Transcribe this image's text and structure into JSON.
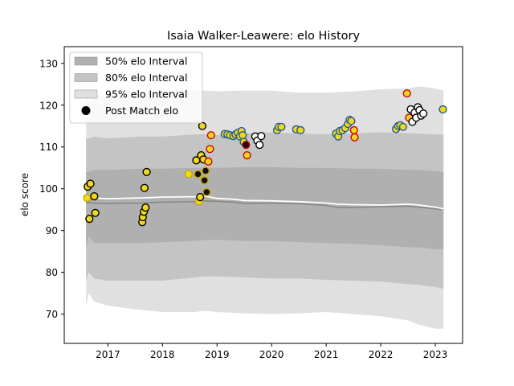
{
  "chart_data": {
    "type": "line",
    "title": "Isaia Walker-Leawere: elo History",
    "xlabel": "",
    "ylabel": "elo score",
    "xlim": [
      2016.2,
      2023.5
    ],
    "ylim": [
      63,
      134
    ],
    "x_ticks": [
      2017,
      2018,
      2019,
      2020,
      2021,
      2022,
      2023
    ],
    "y_ticks": [
      70,
      80,
      90,
      100,
      110,
      120,
      130
    ],
    "grid": false,
    "legend_position": "upper-left",
    "legend": [
      {
        "label": "50% elo Interval",
        "kind": "band",
        "color": "#b0b0b0"
      },
      {
        "label": "80% elo Interval",
        "kind": "band",
        "color": "#c4c4c4"
      },
      {
        "label": "95% elo Interval",
        "kind": "band",
        "color": "#e0e0e0"
      },
      {
        "label": "Post Match elo",
        "kind": "marker",
        "color": "#000000"
      }
    ],
    "colors": {
      "band_50": "#b0b0b0",
      "band_80": "#c4c4c4",
      "band_95": "#e0e0e0",
      "mean_line": "#ffffff",
      "median_line": "#888888",
      "marker_yellow": "#f0d820",
      "marker_black": "#111111",
      "marker_white": "#ffffff",
      "edge_black": "#000000",
      "edge_gold": "#c8a800",
      "edge_blue": "#1f5a99",
      "edge_red": "#cc0000"
    },
    "series": [
      {
        "name": "95% elo Interval",
        "kind": "band",
        "x": [
          2016.6,
          2016.65,
          2016.75,
          2017.0,
          2017.6,
          2018.0,
          2018.6,
          2018.75,
          2019.0,
          2019.5,
          2020.0,
          2020.5,
          2021.0,
          2021.5,
          2022.0,
          2022.5,
          2022.7,
          2023.0,
          2023.15
        ],
        "upper": [
          123,
          120,
          122.5,
          122,
          123,
          123,
          123.5,
          123.5,
          123.3,
          123.5,
          123.5,
          123,
          123,
          123.3,
          123.8,
          124,
          124.5,
          124,
          123.5
        ],
        "lower": [
          72,
          75,
          73,
          72,
          71,
          70.5,
          70.5,
          70.8,
          70.5,
          70.2,
          70,
          70.2,
          70.5,
          70,
          69.5,
          68.5,
          67.5,
          66.5,
          66.5
        ]
      },
      {
        "name": "80% elo Interval",
        "kind": "band",
        "x": [
          2016.6,
          2016.65,
          2016.75,
          2017.0,
          2017.6,
          2018.0,
          2018.6,
          2018.75,
          2019.0,
          2019.5,
          2020.0,
          2020.5,
          2021.0,
          2021.5,
          2022.0,
          2022.5,
          2022.7,
          2023.0,
          2023.15
        ],
        "upper": [
          112,
          112,
          112.5,
          112,
          112.5,
          112.5,
          113,
          113,
          112.8,
          113.3,
          113.5,
          113.2,
          113,
          113.2,
          113.5,
          113.3,
          113.2,
          113,
          113
        ],
        "lower": [
          78,
          80,
          78.5,
          78,
          78,
          78,
          78.8,
          79,
          79,
          78.8,
          78.5,
          78.5,
          78.2,
          78,
          77.8,
          77.2,
          77,
          76.5,
          76
        ]
      },
      {
        "name": "50% elo Interval",
        "kind": "band",
        "x": [
          2016.6,
          2016.65,
          2016.75,
          2017.0,
          2017.6,
          2018.0,
          2018.6,
          2018.75,
          2019.0,
          2019.5,
          2020.0,
          2020.5,
          2021.0,
          2021.5,
          2022.0,
          2022.5,
          2022.7,
          2023.0,
          2023.15
        ],
        "upper": [
          104,
          104,
          104.5,
          104.5,
          104.8,
          104.8,
          105,
          105,
          105,
          105.2,
          105.2,
          105,
          105,
          104.8,
          104.8,
          104.5,
          104.5,
          104.2,
          104
        ],
        "lower": [
          86,
          88.5,
          87,
          87,
          87,
          87.2,
          87.5,
          87.7,
          87.8,
          87.5,
          87.5,
          87.2,
          87,
          86.8,
          86.5,
          86,
          86,
          85.5,
          85.5
        ]
      },
      {
        "name": "",
        "kind": "line",
        "color": "#888888",
        "x": [
          2016.6,
          2016.65,
          2016.75,
          2017.0,
          2017.6,
          2018.0,
          2018.6,
          2018.75,
          2019.0,
          2019.3,
          2019.5,
          2020.0,
          2020.5,
          2021.0,
          2021.2,
          2021.5,
          2022.0,
          2022.5,
          2022.7,
          2023.0,
          2023.15
        ],
        "y": [
          96.5,
          96.8,
          96.5,
          96.5,
          96.6,
          96.8,
          96.9,
          97.1,
          97.0,
          96.8,
          96.5,
          96.6,
          96.4,
          96.0,
          95.5,
          95.5,
          95.7,
          95.8,
          95.6,
          95.2,
          95.0
        ]
      },
      {
        "name": "",
        "kind": "line",
        "color": "#ffffff",
        "x": [
          2016.6,
          2016.65,
          2016.75,
          2017.0,
          2017.6,
          2018.0,
          2018.6,
          2018.75,
          2019.0,
          2019.3,
          2019.5,
          2020.0,
          2020.5,
          2021.0,
          2021.2,
          2021.5,
          2022.0,
          2022.5,
          2022.7,
          2023.0,
          2023.15
        ],
        "y": [
          97.5,
          98.5,
          97.8,
          97.6,
          97.8,
          98.0,
          98.1,
          98.3,
          97.7,
          97.5,
          97.2,
          97.1,
          96.9,
          96.6,
          96.3,
          96.2,
          96.1,
          96.3,
          96.1,
          95.6,
          95.2
        ]
      },
      {
        "name": "Post Match elo",
        "kind": "scatter",
        "points": [
          {
            "x": 2016.62,
            "y": 97.8,
            "fill": "yellow",
            "edge": "gold"
          },
          {
            "x": 2016.63,
            "y": 100.5,
            "fill": "yellow",
            "edge": "black"
          },
          {
            "x": 2016.66,
            "y": 92.8,
            "fill": "yellow",
            "edge": "black"
          },
          {
            "x": 2016.68,
            "y": 101.2,
            "fill": "yellow",
            "edge": "black"
          },
          {
            "x": 2016.75,
            "y": 98.2,
            "fill": "yellow",
            "edge": "black"
          },
          {
            "x": 2016.77,
            "y": 94.2,
            "fill": "yellow",
            "edge": "black"
          },
          {
            "x": 2017.63,
            "y": 92.0,
            "fill": "yellow",
            "edge": "black"
          },
          {
            "x": 2017.64,
            "y": 93.2,
            "fill": "yellow",
            "edge": "black"
          },
          {
            "x": 2017.66,
            "y": 94.5,
            "fill": "yellow",
            "edge": "black"
          },
          {
            "x": 2017.67,
            "y": 100.2,
            "fill": "yellow",
            "edge": "black"
          },
          {
            "x": 2017.69,
            "y": 95.5,
            "fill": "yellow",
            "edge": "black"
          },
          {
            "x": 2017.71,
            "y": 104.0,
            "fill": "yellow",
            "edge": "black"
          },
          {
            "x": 2018.48,
            "y": 103.5,
            "fill": "yellow",
            "edge": "gold"
          },
          {
            "x": 2018.62,
            "y": 106.8,
            "fill": "yellow",
            "edge": "black"
          },
          {
            "x": 2018.65,
            "y": 103.5,
            "fill": "black",
            "edge": "gold"
          },
          {
            "x": 2018.67,
            "y": 97.0,
            "fill": "yellow",
            "edge": "gold"
          },
          {
            "x": 2018.69,
            "y": 98.0,
            "fill": "yellow",
            "edge": "black"
          },
          {
            "x": 2018.71,
            "y": 108.0,
            "fill": "yellow",
            "edge": "black"
          },
          {
            "x": 2018.73,
            "y": 115.0,
            "fill": "yellow",
            "edge": "black"
          },
          {
            "x": 2018.75,
            "y": 107.0,
            "fill": "yellow",
            "edge": "black"
          },
          {
            "x": 2018.77,
            "y": 102.0,
            "fill": "black",
            "edge": "gold"
          },
          {
            "x": 2018.79,
            "y": 104.3,
            "fill": "black",
            "edge": "gold"
          },
          {
            "x": 2018.81,
            "y": 99.2,
            "fill": "black",
            "edge": "gold"
          },
          {
            "x": 2018.84,
            "y": 106.5,
            "fill": "yellow",
            "edge": "red"
          },
          {
            "x": 2018.87,
            "y": 109.5,
            "fill": "yellow",
            "edge": "red"
          },
          {
            "x": 2018.89,
            "y": 112.8,
            "fill": "yellow",
            "edge": "red"
          },
          {
            "x": 2019.14,
            "y": 113.1,
            "fill": "yellow",
            "edge": "blue"
          },
          {
            "x": 2019.19,
            "y": 113.0,
            "fill": "yellow",
            "edge": "blue"
          },
          {
            "x": 2019.24,
            "y": 112.8,
            "fill": "yellow",
            "edge": "blue"
          },
          {
            "x": 2019.3,
            "y": 112.6,
            "fill": "yellow",
            "edge": "blue"
          },
          {
            "x": 2019.34,
            "y": 113.0,
            "fill": "yellow",
            "edge": "blue"
          },
          {
            "x": 2019.38,
            "y": 113.4,
            "fill": "yellow",
            "edge": "blue"
          },
          {
            "x": 2019.42,
            "y": 112.5,
            "fill": "yellow",
            "edge": "blue"
          },
          {
            "x": 2019.45,
            "y": 113.8,
            "fill": "yellow",
            "edge": "blue"
          },
          {
            "x": 2019.47,
            "y": 112.8,
            "fill": "yellow",
            "edge": "blue"
          },
          {
            "x": 2019.49,
            "y": 111.2,
            "fill": "yellow",
            "edge": "blue"
          },
          {
            "x": 2019.53,
            "y": 110.5,
            "fill": "black",
            "edge": "red"
          },
          {
            "x": 2019.55,
            "y": 108.0,
            "fill": "yellow",
            "edge": "red"
          },
          {
            "x": 2019.7,
            "y": 112.5,
            "fill": "white",
            "edge": "black"
          },
          {
            "x": 2019.74,
            "y": 111.5,
            "fill": "white",
            "edge": "black"
          },
          {
            "x": 2019.78,
            "y": 110.5,
            "fill": "white",
            "edge": "black"
          },
          {
            "x": 2019.81,
            "y": 112.6,
            "fill": "white",
            "edge": "black"
          },
          {
            "x": 2020.1,
            "y": 114.0,
            "fill": "yellow",
            "edge": "blue"
          },
          {
            "x": 2020.13,
            "y": 114.8,
            "fill": "yellow",
            "edge": "blue"
          },
          {
            "x": 2020.18,
            "y": 114.8,
            "fill": "yellow",
            "edge": "blue"
          },
          {
            "x": 2020.45,
            "y": 114.2,
            "fill": "yellow",
            "edge": "blue"
          },
          {
            "x": 2020.53,
            "y": 114.0,
            "fill": "yellow",
            "edge": "blue"
          },
          {
            "x": 2021.18,
            "y": 113.2,
            "fill": "yellow",
            "edge": "blue"
          },
          {
            "x": 2021.22,
            "y": 112.5,
            "fill": "yellow",
            "edge": "blue"
          },
          {
            "x": 2021.25,
            "y": 113.8,
            "fill": "yellow",
            "edge": "blue"
          },
          {
            "x": 2021.3,
            "y": 114.0,
            "fill": "yellow",
            "edge": "blue"
          },
          {
            "x": 2021.35,
            "y": 114.5,
            "fill": "yellow",
            "edge": "blue"
          },
          {
            "x": 2021.4,
            "y": 115.5,
            "fill": "yellow",
            "edge": "blue"
          },
          {
            "x": 2021.43,
            "y": 116.5,
            "fill": "yellow",
            "edge": "blue"
          },
          {
            "x": 2021.46,
            "y": 116.2,
            "fill": "yellow",
            "edge": "blue"
          },
          {
            "x": 2021.51,
            "y": 114.0,
            "fill": "yellow",
            "edge": "red"
          },
          {
            "x": 2021.52,
            "y": 112.3,
            "fill": "yellow",
            "edge": "red"
          },
          {
            "x": 2022.28,
            "y": 114.3,
            "fill": "yellow",
            "edge": "blue"
          },
          {
            "x": 2022.32,
            "y": 115.0,
            "fill": "yellow",
            "edge": "blue"
          },
          {
            "x": 2022.36,
            "y": 115.2,
            "fill": "yellow",
            "edge": "blue"
          },
          {
            "x": 2022.41,
            "y": 114.8,
            "fill": "yellow",
            "edge": "blue"
          },
          {
            "x": 2022.48,
            "y": 122.8,
            "fill": "yellow",
            "edge": "red"
          },
          {
            "x": 2022.52,
            "y": 117.0,
            "fill": "yellow",
            "edge": "red"
          },
          {
            "x": 2022.55,
            "y": 119.0,
            "fill": "white",
            "edge": "black"
          },
          {
            "x": 2022.58,
            "y": 116.0,
            "fill": "white",
            "edge": "black"
          },
          {
            "x": 2022.62,
            "y": 118.2,
            "fill": "white",
            "edge": "black"
          },
          {
            "x": 2022.65,
            "y": 117.0,
            "fill": "white",
            "edge": "black"
          },
          {
            "x": 2022.68,
            "y": 119.5,
            "fill": "white",
            "edge": "black"
          },
          {
            "x": 2022.71,
            "y": 118.8,
            "fill": "white",
            "edge": "black"
          },
          {
            "x": 2022.74,
            "y": 117.5,
            "fill": "white",
            "edge": "black"
          },
          {
            "x": 2022.78,
            "y": 118.0,
            "fill": "white",
            "edge": "black"
          },
          {
            "x": 2023.14,
            "y": 119.0,
            "fill": "yellow",
            "edge": "blue"
          }
        ]
      }
    ]
  }
}
